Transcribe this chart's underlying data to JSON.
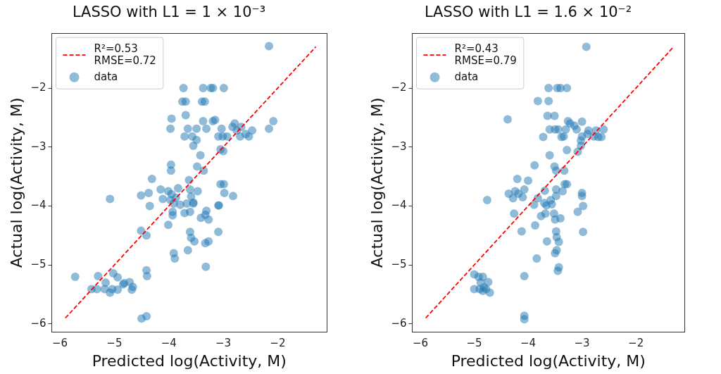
{
  "chart_data": [
    {
      "type": "scatter",
      "title": "LASSO with L1 = 1 × 10⁻³",
      "xlabel": "Predicted log(Activity, M)",
      "ylabel": "Actual log(Activity, M)",
      "xlim": [
        -6.15,
        -1.1
      ],
      "ylim": [
        -6.14,
        -1.07
      ],
      "xticks": [
        {
          "value": -6,
          "label": "−6"
        },
        {
          "value": -5,
          "label": "−5"
        },
        {
          "value": -4,
          "label": "−4"
        },
        {
          "value": -3,
          "label": "−3"
        },
        {
          "value": -2,
          "label": "−2"
        }
      ],
      "yticks": [
        {
          "value": -6,
          "label": "−6"
        },
        {
          "value": -5,
          "label": "−5"
        },
        {
          "value": -4,
          "label": "−4"
        },
        {
          "value": -3,
          "label": "−3"
        },
        {
          "value": -2,
          "label": "−2"
        }
      ],
      "grid": false,
      "legend": "top left",
      "series": [
        {
          "name": "R²=0.53\nRMSE=0.72",
          "type": "line",
          "line_style": "dashed",
          "marker": "none",
          "color": "#ff0000",
          "x": [
            -5.9,
            -1.3
          ],
          "values": [
            -5.9,
            -1.3
          ]
        },
        {
          "name": "data",
          "marker": "circle",
          "color": "#1f77b4",
          "x": [
            -2.16,
            -3.73,
            -3.37,
            -3.23,
            -3.19,
            -2.99,
            -3.75,
            -3.69,
            -3.39,
            -3.34,
            -3.69,
            -3.95,
            -3.37,
            -3.19,
            -3.15,
            -2.08,
            -2.16,
            -3.97,
            -3.65,
            -3.49,
            -3.31,
            -3.03,
            -2.83,
            -2.79,
            -2.67,
            -2.75,
            -2.47,
            -3.71,
            -3.57,
            -3.49,
            -3.55,
            -3.09,
            -3.01,
            -2.93,
            -2.69,
            -2.53,
            -2.59,
            -3.05,
            -3.0,
            -3.42,
            -3.96,
            -3.96,
            -3.48,
            -3.36,
            -4.31,
            -3.63,
            -3.05,
            -2.99,
            -4.15,
            -4.01,
            -3.83,
            -3.95,
            -3.87,
            -4.11,
            -3.97,
            -4.51,
            -4.37,
            -5.08,
            -4.35,
            -3.91,
            -3.79,
            -3.67,
            -3.61,
            -3.59,
            -3.47,
            -3.55,
            -3.93,
            -3.93,
            -3.71,
            -3.61,
            -3.55,
            -3.41,
            -3.31,
            -3.27,
            -3.33,
            -3.09,
            -3.08,
            -2.98,
            -2.82,
            -4.01,
            -3.61,
            -3.59,
            -3.53,
            -3.65,
            -3.33,
            -3.27,
            -3.09,
            -4.51,
            -4.41,
            -3.91,
            -3.89,
            -3.32,
            -4.41,
            -4.4,
            -5.72,
            -5.3,
            -5.16,
            -5.02,
            -4.94,
            -4.82,
            -4.72,
            -4.66,
            -5.42,
            -5.32,
            -5.18,
            -5.08,
            -5.04,
            -4.94,
            -4.84,
            -4.68,
            -4.5,
            -4.41
          ],
          "values": [
            -1.29,
            -2.0,
            -2.0,
            -2.0,
            -2.0,
            -2.0,
            -2.23,
            -2.23,
            -2.23,
            -2.23,
            -2.46,
            -2.52,
            -2.56,
            -2.56,
            -2.54,
            -2.56,
            -2.69,
            -2.69,
            -2.69,
            -2.69,
            -2.69,
            -2.69,
            -2.66,
            -2.6,
            -2.66,
            -2.72,
            -2.72,
            -2.82,
            -2.82,
            -2.88,
            -2.98,
            -2.82,
            -2.82,
            -2.82,
            -2.82,
            -2.82,
            -2.78,
            -3.04,
            -3.07,
            -3.14,
            -3.3,
            -3.4,
            -3.33,
            -3.4,
            -3.54,
            -3.56,
            -3.63,
            -3.63,
            -3.72,
            -3.75,
            -3.7,
            -3.8,
            -3.86,
            -3.88,
            -3.9,
            -3.82,
            -3.78,
            -3.88,
            -4.0,
            -3.96,
            -3.98,
            -3.96,
            -3.72,
            -3.84,
            -3.75,
            -3.96,
            -4.1,
            -4.16,
            -4.12,
            -4.1,
            -3.94,
            -4.2,
            -4.08,
            -4.23,
            -4.15,
            -3.99,
            -3.99,
            -3.78,
            -3.83,
            -4.32,
            -4.44,
            -4.54,
            -4.6,
            -4.75,
            -4.63,
            -4.6,
            -4.44,
            -4.42,
            -4.5,
            -4.8,
            -4.89,
            -5.03,
            -5.09,
            -5.19,
            -5.2,
            -5.19,
            -5.3,
            -5.14,
            -5.21,
            -5.31,
            -5.29,
            -5.37,
            -5.41,
            -5.41,
            -5.41,
            -5.47,
            -5.41,
            -5.42,
            -5.33,
            -5.42,
            -5.91,
            -5.87
          ]
        }
      ]
    },
    {
      "type": "scatter",
      "title": "LASSO with L1 = 1.6 × 10⁻²",
      "xlabel": "Predicted log(Activity, M)",
      "ylabel": "Actual log(Activity, M)",
      "xlim": [
        -6.15,
        -1.1
      ],
      "ylim": [
        -6.14,
        -1.07
      ],
      "xticks": [
        {
          "value": -6,
          "label": "−6"
        },
        {
          "value": -5,
          "label": "−5"
        },
        {
          "value": -4,
          "label": "−4"
        },
        {
          "value": -3,
          "label": "−3"
        },
        {
          "value": -2,
          "label": "−2"
        }
      ],
      "yticks": [
        {
          "value": -6,
          "label": "−6"
        },
        {
          "value": -5,
          "label": "−5"
        },
        {
          "value": -4,
          "label": "−4"
        },
        {
          "value": -3,
          "label": "−3"
        },
        {
          "value": -2,
          "label": "−2"
        }
      ],
      "grid": false,
      "legend": "top left",
      "series": [
        {
          "name": "R²=0.43\nRMSE=0.79",
          "type": "line",
          "line_style": "dashed",
          "marker": "none",
          "color": "#ff0000",
          "x": [
            -5.9,
            -1.3
          ],
          "values": [
            -5.9,
            -1.3
          ]
        },
        {
          "name": "data",
          "marker": "circle",
          "color": "#1f77b4",
          "x": [
            -2.92,
            -3.62,
            -3.46,
            -3.4,
            -3.28,
            -3.82,
            -3.62,
            -4.38,
            -3.64,
            -3.51,
            -3.26,
            -3.22,
            -3.0,
            -3.14,
            -3.1,
            -3.6,
            -3.5,
            -3.44,
            -3.3,
            -2.88,
            -2.74,
            -2.6,
            -3.72,
            -3.38,
            -3.34,
            -3.0,
            -2.9,
            -2.78,
            -2.7,
            -2.64,
            -3.02,
            -3.02,
            -3.08,
            -3.28,
            -3.6,
            -3.88,
            -3.51,
            -3.48,
            -3.33,
            -4.2,
            -4.0,
            -3.32,
            -3.28,
            -4.36,
            -4.24,
            -4.18,
            -4.28,
            -4.1,
            -4.07,
            -3.69,
            -3.82,
            -3.89,
            -3.7,
            -3.66,
            -3.56,
            -3.58,
            -3.48,
            -3.48,
            -3.36,
            -3.76,
            -3.68,
            -3.52,
            -3.5,
            -3.4,
            -3.0,
            -3.0,
            -2.98,
            -3.08,
            -2.98,
            -4.76,
            -4.26,
            -4.12,
            -3.87,
            -3.65,
            -3.48,
            -3.47,
            -3.43,
            -3.47,
            -3.5,
            -3.84,
            -3.43,
            -3.45,
            -4.07,
            -5.0,
            -4.92,
            -4.84,
            -4.88,
            -4.74,
            -5.0,
            -4.9,
            -4.82,
            -4.78,
            -4.84,
            -4.71,
            -4.07,
            -4.07
          ],
          "values": [
            -1.3,
            -2.0,
            -2.0,
            -2.0,
            -2.0,
            -2.22,
            -2.22,
            -2.53,
            -2.47,
            -2.47,
            -2.56,
            -2.6,
            -2.57,
            -2.64,
            -2.7,
            -2.7,
            -2.7,
            -2.7,
            -2.7,
            -2.72,
            -2.72,
            -2.7,
            -2.83,
            -2.83,
            -2.82,
            -2.82,
            -2.78,
            -2.82,
            -2.83,
            -2.83,
            -2.89,
            -2.98,
            -3.08,
            -3.05,
            -3.14,
            -3.31,
            -3.33,
            -3.4,
            -3.4,
            -3.54,
            -3.57,
            -3.63,
            -3.63,
            -3.79,
            -3.75,
            -3.79,
            -3.87,
            -3.85,
            -3.72,
            -3.74,
            -3.87,
            -3.98,
            -3.95,
            -3.99,
            -3.97,
            -3.9,
            -3.72,
            -3.83,
            -3.75,
            -4.17,
            -4.13,
            -4.13,
            -4.23,
            -4.21,
            -3.78,
            -3.83,
            -4.0,
            -4.1,
            -4.44,
            -3.9,
            -4.13,
            -4.43,
            -4.33,
            -4.6,
            -4.43,
            -4.53,
            -4.61,
            -4.75,
            -4.8,
            -4.89,
            -5.04,
            -5.1,
            -5.19,
            -5.16,
            -5.2,
            -5.2,
            -5.3,
            -5.29,
            -5.41,
            -5.41,
            -5.38,
            -5.41,
            -5.44,
            -5.47,
            -5.86,
            -5.92
          ]
        }
      ]
    }
  ]
}
